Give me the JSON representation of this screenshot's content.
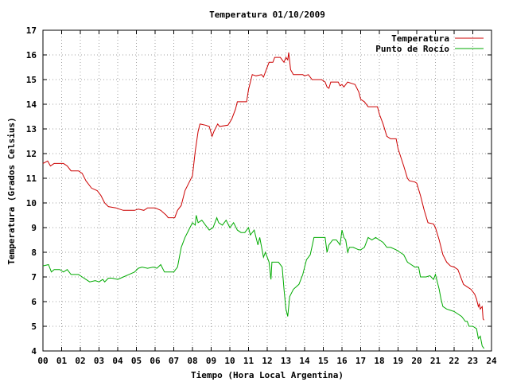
{
  "chart_data": {
    "type": "line",
    "title": "Temperatura 01/10/2009",
    "xlabel": "Tiempo (Hora Local Argentina)",
    "ylabel": "Temperatura (Grados Celsius)",
    "xlim": [
      0,
      24
    ],
    "ylim": [
      4,
      17
    ],
    "x_ticks": [
      "00",
      "01",
      "02",
      "03",
      "04",
      "05",
      "06",
      "07",
      "08",
      "09",
      "10",
      "11",
      "12",
      "13",
      "14",
      "15",
      "16",
      "17",
      "18",
      "19",
      "20",
      "21",
      "22",
      "23",
      "24"
    ],
    "y_ticks": [
      "4",
      "5",
      "6",
      "7",
      "8",
      "9",
      "10",
      "11",
      "12",
      "13",
      "14",
      "15",
      "16",
      "17"
    ],
    "grid": true,
    "legend_position": "top-right",
    "series": [
      {
        "name": "Temperatura",
        "color": "#cc0000",
        "points": [
          [
            0.0,
            11.6
          ],
          [
            0.25,
            11.7
          ],
          [
            0.4,
            11.5
          ],
          [
            0.6,
            11.6
          ],
          [
            0.9,
            11.6
          ],
          [
            1.1,
            11.6
          ],
          [
            1.3,
            11.5
          ],
          [
            1.5,
            11.3
          ],
          [
            1.9,
            11.3
          ],
          [
            2.1,
            11.2
          ],
          [
            2.3,
            10.9
          ],
          [
            2.6,
            10.6
          ],
          [
            2.9,
            10.5
          ],
          [
            3.1,
            10.3
          ],
          [
            3.3,
            10.0
          ],
          [
            3.5,
            9.85
          ],
          [
            3.9,
            9.8
          ],
          [
            4.1,
            9.75
          ],
          [
            4.3,
            9.7
          ],
          [
            4.9,
            9.7
          ],
          [
            5.1,
            9.75
          ],
          [
            5.4,
            9.7
          ],
          [
            5.6,
            9.8
          ],
          [
            6.0,
            9.8
          ],
          [
            6.3,
            9.7
          ],
          [
            6.6,
            9.5
          ],
          [
            6.7,
            9.4
          ],
          [
            7.05,
            9.4
          ],
          [
            7.2,
            9.7
          ],
          [
            7.4,
            9.9
          ],
          [
            7.6,
            10.5
          ],
          [
            7.8,
            10.8
          ],
          [
            8.0,
            11.1
          ],
          [
            8.15,
            12.1
          ],
          [
            8.3,
            12.9
          ],
          [
            8.4,
            13.2
          ],
          [
            8.7,
            13.15
          ],
          [
            8.9,
            13.1
          ],
          [
            9.05,
            12.7
          ],
          [
            9.15,
            12.9
          ],
          [
            9.35,
            13.2
          ],
          [
            9.45,
            13.1
          ],
          [
            9.9,
            13.15
          ],
          [
            10.1,
            13.4
          ],
          [
            10.3,
            13.8
          ],
          [
            10.4,
            14.1
          ],
          [
            10.9,
            14.1
          ],
          [
            11.0,
            14.6
          ],
          [
            11.2,
            15.2
          ],
          [
            11.4,
            15.15
          ],
          [
            11.7,
            15.2
          ],
          [
            11.8,
            15.1
          ],
          [
            12.1,
            15.7
          ],
          [
            12.3,
            15.7
          ],
          [
            12.4,
            15.9
          ],
          [
            12.7,
            15.9
          ],
          [
            12.9,
            15.7
          ],
          [
            13.0,
            15.9
          ],
          [
            13.1,
            15.8
          ],
          [
            13.15,
            16.1
          ],
          [
            13.25,
            15.4
          ],
          [
            13.4,
            15.2
          ],
          [
            13.9,
            15.2
          ],
          [
            14.0,
            15.15
          ],
          [
            14.2,
            15.2
          ],
          [
            14.4,
            15.0
          ],
          [
            14.9,
            15.0
          ],
          [
            15.1,
            14.9
          ],
          [
            15.2,
            14.7
          ],
          [
            15.3,
            14.65
          ],
          [
            15.4,
            14.9
          ],
          [
            15.6,
            14.9
          ],
          [
            15.8,
            14.9
          ],
          [
            15.9,
            14.75
          ],
          [
            16.0,
            14.8
          ],
          [
            16.1,
            14.7
          ],
          [
            16.3,
            14.9
          ],
          [
            16.5,
            14.85
          ],
          [
            16.7,
            14.8
          ],
          [
            16.9,
            14.5
          ],
          [
            17.0,
            14.2
          ],
          [
            17.2,
            14.1
          ],
          [
            17.4,
            13.9
          ],
          [
            17.9,
            13.9
          ],
          [
            18.0,
            13.6
          ],
          [
            18.2,
            13.2
          ],
          [
            18.4,
            12.7
          ],
          [
            18.6,
            12.6
          ],
          [
            18.9,
            12.6
          ],
          [
            19.0,
            12.2
          ],
          [
            19.3,
            11.5
          ],
          [
            19.5,
            11.0
          ],
          [
            19.6,
            10.9
          ],
          [
            19.9,
            10.85
          ],
          [
            20.0,
            10.8
          ],
          [
            20.2,
            10.3
          ],
          [
            20.4,
            9.7
          ],
          [
            20.6,
            9.2
          ],
          [
            20.9,
            9.15
          ],
          [
            21.0,
            9.0
          ],
          [
            21.2,
            8.5
          ],
          [
            21.4,
            7.9
          ],
          [
            21.6,
            7.6
          ],
          [
            21.8,
            7.45
          ],
          [
            22.0,
            7.4
          ],
          [
            22.2,
            7.3
          ],
          [
            22.3,
            7.1
          ],
          [
            22.4,
            6.9
          ],
          [
            22.5,
            6.7
          ],
          [
            22.7,
            6.6
          ],
          [
            22.9,
            6.5
          ],
          [
            23.0,
            6.4
          ],
          [
            23.1,
            6.3
          ],
          [
            23.2,
            6.1
          ],
          [
            23.3,
            5.8
          ],
          [
            23.35,
            5.9
          ],
          [
            23.4,
            5.7
          ],
          [
            23.5,
            5.8
          ],
          [
            23.55,
            5.3
          ],
          [
            23.6,
            5.25
          ]
        ]
      },
      {
        "name": "Punto de Rocío",
        "color": "#00aa00",
        "points": [
          [
            0.0,
            7.45
          ],
          [
            0.3,
            7.5
          ],
          [
            0.45,
            7.2
          ],
          [
            0.6,
            7.3
          ],
          [
            0.9,
            7.3
          ],
          [
            1.1,
            7.2
          ],
          [
            1.3,
            7.3
          ],
          [
            1.5,
            7.1
          ],
          [
            1.9,
            7.1
          ],
          [
            2.1,
            7.0
          ],
          [
            2.3,
            6.9
          ],
          [
            2.5,
            6.8
          ],
          [
            2.8,
            6.85
          ],
          [
            3.0,
            6.8
          ],
          [
            3.2,
            6.9
          ],
          [
            3.3,
            6.8
          ],
          [
            3.5,
            6.95
          ],
          [
            3.7,
            6.95
          ],
          [
            4.0,
            6.9
          ],
          [
            4.3,
            7.0
          ],
          [
            4.6,
            7.1
          ],
          [
            4.9,
            7.2
          ],
          [
            5.1,
            7.35
          ],
          [
            5.3,
            7.4
          ],
          [
            5.6,
            7.35
          ],
          [
            5.9,
            7.4
          ],
          [
            6.1,
            7.35
          ],
          [
            6.3,
            7.5
          ],
          [
            6.5,
            7.2
          ],
          [
            6.7,
            7.2
          ],
          [
            7.0,
            7.2
          ],
          [
            7.2,
            7.4
          ],
          [
            7.4,
            8.2
          ],
          [
            7.6,
            8.6
          ],
          [
            7.8,
            8.9
          ],
          [
            8.0,
            9.2
          ],
          [
            8.15,
            9.1
          ],
          [
            8.2,
            9.5
          ],
          [
            8.3,
            9.2
          ],
          [
            8.5,
            9.3
          ],
          [
            8.7,
            9.1
          ],
          [
            8.9,
            8.9
          ],
          [
            9.1,
            9.0
          ],
          [
            9.3,
            9.4
          ],
          [
            9.4,
            9.2
          ],
          [
            9.6,
            9.1
          ],
          [
            9.8,
            9.3
          ],
          [
            10.0,
            9.0
          ],
          [
            10.2,
            9.2
          ],
          [
            10.4,
            8.9
          ],
          [
            10.6,
            8.8
          ],
          [
            10.8,
            8.8
          ],
          [
            11.0,
            9.0
          ],
          [
            11.1,
            8.7
          ],
          [
            11.3,
            8.9
          ],
          [
            11.5,
            8.3
          ],
          [
            11.6,
            8.6
          ],
          [
            11.8,
            7.8
          ],
          [
            11.9,
            8.0
          ],
          [
            12.1,
            7.6
          ],
          [
            12.2,
            6.9
          ],
          [
            12.25,
            7.6
          ],
          [
            12.6,
            7.6
          ],
          [
            12.8,
            7.4
          ],
          [
            12.9,
            6.5
          ],
          [
            13.0,
            5.7
          ],
          [
            13.1,
            5.4
          ],
          [
            13.2,
            6.2
          ],
          [
            13.4,
            6.5
          ],
          [
            13.7,
            6.7
          ],
          [
            13.9,
            7.1
          ],
          [
            14.1,
            7.7
          ],
          [
            14.3,
            7.9
          ],
          [
            14.5,
            8.6
          ],
          [
            14.7,
            8.6
          ],
          [
            14.9,
            8.6
          ],
          [
            15.1,
            8.6
          ],
          [
            15.2,
            8.0
          ],
          [
            15.3,
            8.3
          ],
          [
            15.5,
            8.5
          ],
          [
            15.7,
            8.5
          ],
          [
            15.9,
            8.3
          ],
          [
            16.0,
            8.9
          ],
          [
            16.1,
            8.6
          ],
          [
            16.2,
            8.5
          ],
          [
            16.3,
            8.0
          ],
          [
            16.4,
            8.2
          ],
          [
            16.6,
            8.2
          ],
          [
            16.9,
            8.1
          ],
          [
            17.0,
            8.1
          ],
          [
            17.2,
            8.2
          ],
          [
            17.4,
            8.6
          ],
          [
            17.6,
            8.5
          ],
          [
            17.8,
            8.6
          ],
          [
            18.0,
            8.5
          ],
          [
            18.2,
            8.4
          ],
          [
            18.4,
            8.2
          ],
          [
            18.6,
            8.2
          ],
          [
            18.9,
            8.1
          ],
          [
            19.1,
            8.0
          ],
          [
            19.3,
            7.9
          ],
          [
            19.5,
            7.6
          ],
          [
            19.7,
            7.5
          ],
          [
            19.9,
            7.4
          ],
          [
            20.1,
            7.4
          ],
          [
            20.2,
            7.0
          ],
          [
            20.5,
            7.0
          ],
          [
            20.7,
            7.05
          ],
          [
            20.9,
            6.9
          ],
          [
            21.0,
            7.1
          ],
          [
            21.2,
            6.5
          ],
          [
            21.3,
            6.1
          ],
          [
            21.4,
            5.8
          ],
          [
            21.6,
            5.7
          ],
          [
            21.8,
            5.65
          ],
          [
            22.0,
            5.6
          ],
          [
            22.2,
            5.5
          ],
          [
            22.4,
            5.4
          ],
          [
            22.6,
            5.2
          ],
          [
            22.7,
            5.2
          ],
          [
            22.8,
            5.0
          ],
          [
            23.0,
            5.0
          ],
          [
            23.2,
            4.9
          ],
          [
            23.3,
            4.5
          ],
          [
            23.4,
            4.6
          ],
          [
            23.5,
            4.2
          ],
          [
            23.6,
            4.1
          ]
        ]
      }
    ]
  }
}
